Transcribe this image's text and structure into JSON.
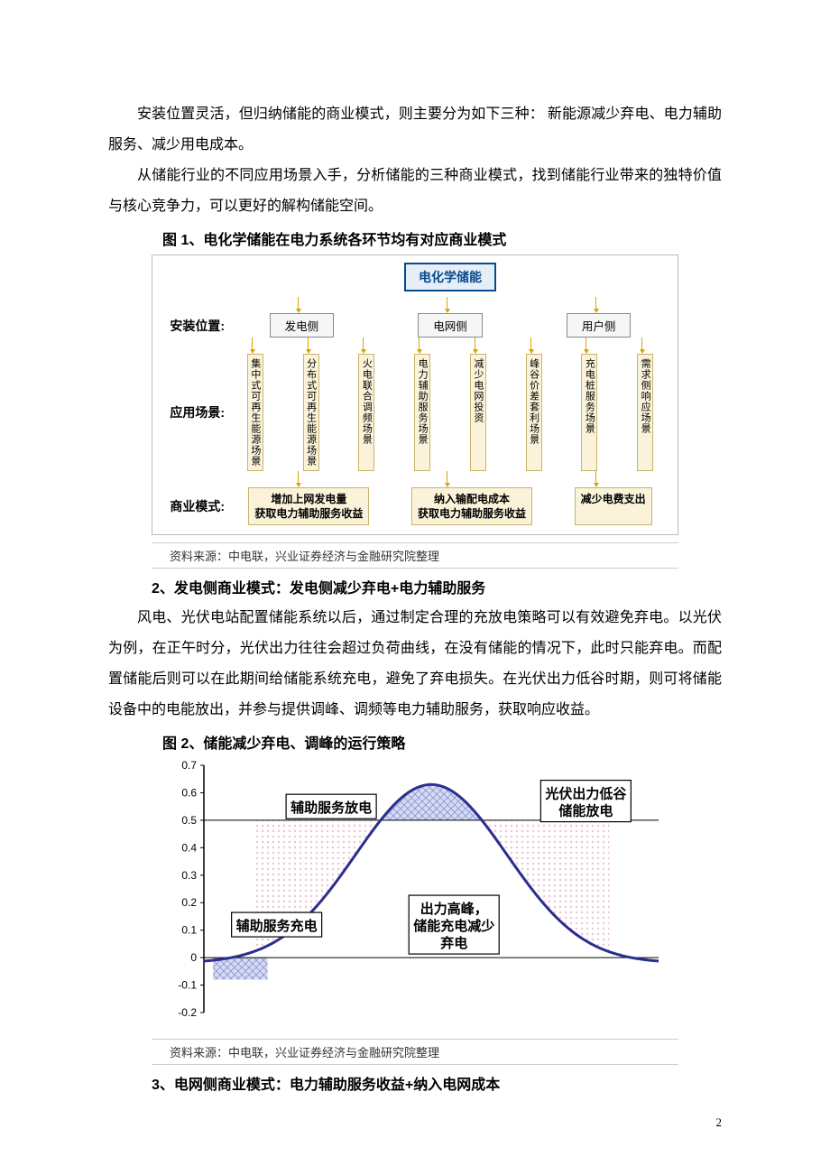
{
  "paragraphs": {
    "p1": "安装位置灵活，但归纳储能的商业模式，则主要分为如下三种：  新能源减少弃电、电力辅助服务、减少用电成本。",
    "p2": "从储能行业的不同应用场景入手，分析储能的三种商业模式，找到储能行业带来的独特价值与核心竞争力，可以更好的解构储能空间。",
    "p3": "风电、光伏电站配置储能系统以后，通过制定合理的充放电策略可以有效避免弃电。以光伏为例，在正午时分，光伏出力往往会超过负荷曲线，在没有储能的情况下，此时只能弃电。而配置储能后则可以在此期间给储能系统充电，避免了弃电损失。在光伏出力低谷时期，则可将储能设备中的电能放出，并参与提供调峰、调频等电力辅助服务，获取响应收益。"
  },
  "headings": {
    "h2": "2、发电侧商业模式：发电侧减少弃电+电力辅助服务",
    "h3": "3、电网侧商业模式：电力辅助服务收益+纳入电网成本"
  },
  "fig1": {
    "title": "图 1、电化学储能在电力系统各环节均有对应商业模式",
    "root": "电化学储能",
    "row_labels": {
      "install": "安装位置:",
      "scene": "应用场景:",
      "biz": "商业模式:"
    },
    "installs": [
      "发电侧",
      "电网侧",
      "用户侧"
    ],
    "scenes_gen": [
      [
        "集中式可",
        "再生能源",
        "场景"
      ],
      [
        "分布式可",
        "再生能源",
        "场景"
      ],
      [
        "火电联合",
        "调频场景"
      ]
    ],
    "scenes_grid": [
      [
        "电力辅助",
        "服务场景"
      ],
      [
        "减少电网",
        "投资"
      ]
    ],
    "scenes_user": [
      [
        "峰谷价差",
        "套利场景"
      ],
      [
        "充电桩服",
        "务场景"
      ],
      [
        "需求侧响",
        "应场景"
      ]
    ],
    "biz": {
      "gen": "增加上网发电量\n获取电力辅助服务收益",
      "grid": "纳入输配电成本\n获取电力辅助服务收益",
      "user": "减少电费支出"
    },
    "source": "资料来源：中电联，兴业证券经济与金融研究院整理"
  },
  "fig2": {
    "title": "图 2、储能减少弃电、调峰的运行策略",
    "type": "line",
    "ylim": [
      -0.2,
      0.7
    ],
    "ytick_step": 0.1,
    "yticks": [
      -0.2,
      -0.1,
      0,
      0.1,
      0.2,
      0.3,
      0.4,
      0.5,
      0.6,
      0.7
    ],
    "line_color": "#2a2e8f",
    "line_width": 3,
    "fill_top_color": "#aab2e6",
    "fill_pink_pattern": "#f0c2d0",
    "grid_color": "#d0d0d0",
    "labels": {
      "aux_discharge": "辅助服务放电",
      "pv_low": "光伏出力低谷\n储能放电",
      "aux_charge": "辅助服务充电",
      "peak": "出力高峰，\n储能充电减少\n弃电"
    },
    "source": "资料来源：中电联，兴业证券经济与金融研究院整理"
  },
  "page_number": "2"
}
